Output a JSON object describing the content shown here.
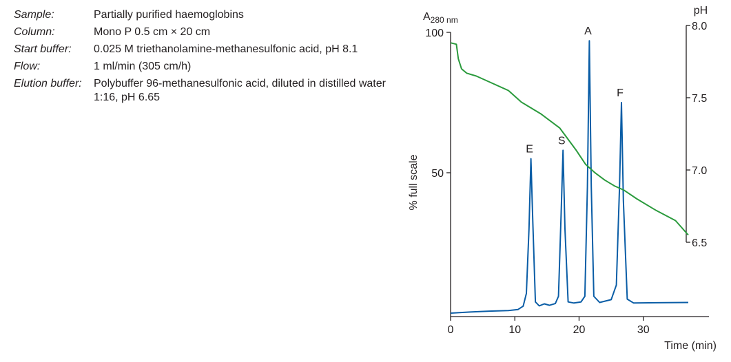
{
  "info": [
    {
      "label": "Sample:",
      "value": "Partially purified haemoglobins"
    },
    {
      "label": "Column:",
      "value": "Mono P 0.5 cm × 20 cm"
    },
    {
      "label": "Start buffer:",
      "value": "0.025 M triethanolamine-methanesulfonic acid, pH 8.1"
    },
    {
      "label": "Flow:",
      "value": "1 ml/min (305 cm/h)"
    },
    {
      "label": "Elution buffer:",
      "value": "Polybuffer 96-methanesulfonic acid, diluted in distilled water 1:16, pH 6.65"
    }
  ],
  "chart_data": {
    "type": "line",
    "xlabel": "Time (min)",
    "x_ticks": [
      0,
      10,
      20,
      30
    ],
    "xlim": [
      0,
      37
    ],
    "left_axis": {
      "label_main": "A",
      "label_sub": "280 nm",
      "rotated_label": "% full scale",
      "ticks": [
        50,
        100
      ],
      "ylim": [
        0,
        100
      ]
    },
    "right_axis": {
      "label": "pH",
      "ticks": [
        "6.5",
        "7.0",
        "7.5",
        "8.0"
      ],
      "ylim": [
        6.5,
        8.0
      ]
    },
    "colors": {
      "absorbance": "#0a5da6",
      "ph": "#2a9a3c"
    },
    "series": [
      {
        "axis": "left",
        "color": "#0a5da6",
        "points": [
          [
            0,
            0
          ],
          [
            3,
            0.4
          ],
          [
            6,
            0.7
          ],
          [
            9,
            0.9
          ],
          [
            10.5,
            1.3
          ],
          [
            11.3,
            2.5
          ],
          [
            11.8,
            7
          ],
          [
            12.2,
            30
          ],
          [
            12.5,
            55
          ],
          [
            12.8,
            32
          ],
          [
            13.2,
            4
          ],
          [
            13.8,
            2.6
          ],
          [
            14.6,
            3.3
          ],
          [
            15.4,
            2.8
          ],
          [
            16.3,
            3.4
          ],
          [
            16.8,
            6
          ],
          [
            17.2,
            35
          ],
          [
            17.5,
            58
          ],
          [
            17.8,
            30
          ],
          [
            18.3,
            4
          ],
          [
            19.2,
            3.6
          ],
          [
            20.3,
            4
          ],
          [
            20.9,
            6
          ],
          [
            21.3,
            45
          ],
          [
            21.6,
            97
          ],
          [
            21.9,
            45
          ],
          [
            22.3,
            6
          ],
          [
            23.2,
            3.8
          ],
          [
            25,
            4.8
          ],
          [
            25.8,
            10
          ],
          [
            26.3,
            45
          ],
          [
            26.6,
            75
          ],
          [
            26.9,
            40
          ],
          [
            27.5,
            5
          ],
          [
            28.5,
            3.6
          ],
          [
            32,
            3.7
          ],
          [
            37,
            3.8
          ]
        ]
      },
      {
        "axis": "right",
        "color": "#2a9a3c",
        "points": [
          [
            0,
            7.88
          ],
          [
            0.9,
            7.87
          ],
          [
            1.2,
            7.77
          ],
          [
            1.7,
            7.7
          ],
          [
            2.5,
            7.67
          ],
          [
            4,
            7.65
          ],
          [
            6,
            7.61
          ],
          [
            9,
            7.55
          ],
          [
            11,
            7.47
          ],
          [
            14,
            7.39
          ],
          [
            17,
            7.29
          ],
          [
            19.5,
            7.14
          ],
          [
            21,
            7.04
          ],
          [
            22.5,
            6.98
          ],
          [
            24,
            6.93
          ],
          [
            25.5,
            6.89
          ],
          [
            27,
            6.86
          ],
          [
            29,
            6.8
          ],
          [
            32,
            6.72
          ],
          [
            35,
            6.65
          ],
          [
            37,
            6.55
          ]
        ]
      }
    ],
    "peaks": [
      {
        "label": "E",
        "x": 12.5
      },
      {
        "label": "S",
        "x": 17.5
      },
      {
        "label": "A",
        "x": 21.6
      },
      {
        "label": "F",
        "x": 26.6
      }
    ]
  }
}
